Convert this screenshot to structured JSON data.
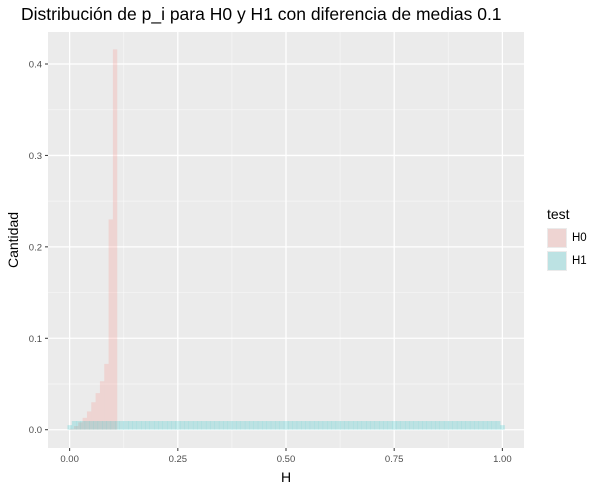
{
  "chart_data": {
    "type": "histogram",
    "title": "Distribución de p_i para H0 y H1 con diferencia de medias 0.1",
    "xlabel": "H",
    "ylabel": "Cantidad",
    "xlim": [
      -0.05,
      1.05
    ],
    "ylim": [
      -0.02,
      0.435
    ],
    "xticks": [
      "0.00",
      "0.25",
      "0.50",
      "0.75",
      "1.00"
    ],
    "xtick_values": [
      0,
      0.25,
      0.5,
      0.75,
      1.0
    ],
    "yticks": [
      "0.0",
      "0.1",
      "0.2",
      "0.3",
      "0.4"
    ],
    "ytick_values": [
      0,
      0.1,
      0.2,
      0.3,
      0.4
    ],
    "grid": true,
    "legend": {
      "title": "test",
      "position": "right"
    },
    "series": [
      {
        "name": "H0",
        "color": "#F8766D",
        "bin_width": 0.01,
        "bins": [
          {
            "x0": 0.0,
            "y": 0.001
          },
          {
            "x0": 0.01,
            "y": 0.004
          },
          {
            "x0": 0.02,
            "y": 0.008
          },
          {
            "x0": 0.03,
            "y": 0.013
          },
          {
            "x0": 0.04,
            "y": 0.02
          },
          {
            "x0": 0.05,
            "y": 0.03
          },
          {
            "x0": 0.06,
            "y": 0.04
          },
          {
            "x0": 0.07,
            "y": 0.053
          },
          {
            "x0": 0.08,
            "y": 0.072
          },
          {
            "x0": 0.09,
            "y": 0.23
          },
          {
            "x0": 0.1,
            "y": 0.416
          }
        ]
      },
      {
        "name": "H1",
        "color": "#00BFC4",
        "bin_width": 0.01,
        "range": [
          0.0,
          1.0
        ],
        "level": 0.0095,
        "edge_level": 0.005
      }
    ]
  }
}
